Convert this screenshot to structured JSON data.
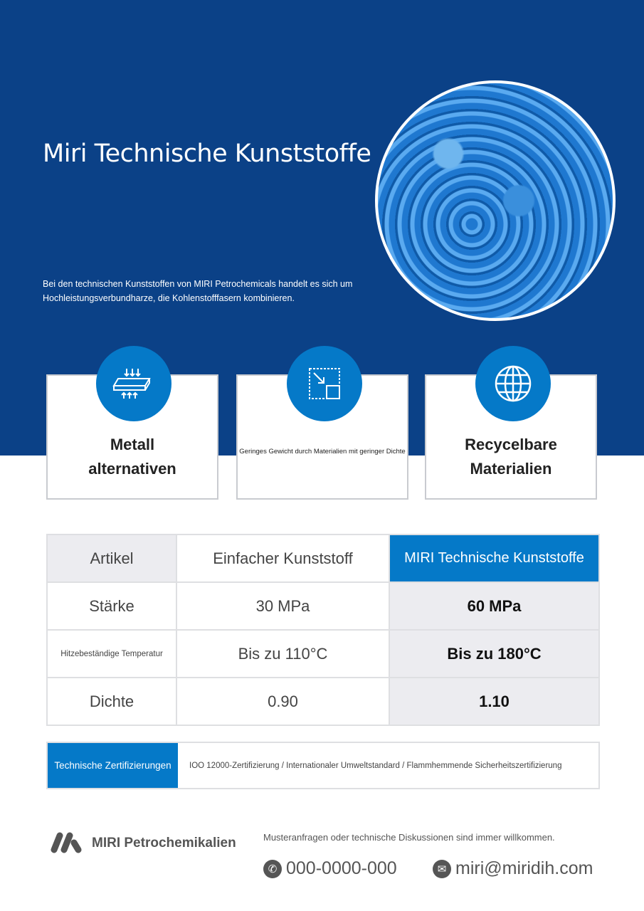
{
  "header": {
    "title": "Miri Technische Kunststoffe",
    "description": "Bei den technischen Kunststoffen von MIRI Petrochemicals handelt es sich um Hochleistungsverbundharze, die Kohlenstofffasern kombinieren."
  },
  "features": [
    {
      "icon": "pressure-plate-icon",
      "label": "Metall alternativen"
    },
    {
      "icon": "resize-icon",
      "label": "Geringes Gewicht durch Materialien mit geringer Dichte"
    },
    {
      "icon": "globe-icon",
      "label": "Recycelbare Materialien"
    }
  ],
  "table": {
    "headers": [
      "Artikel",
      "Einfacher Kunststoff",
      "MIRI Technische Kunststoffe"
    ],
    "rows": [
      [
        "Stärke",
        "30 MPa",
        "60 MPa"
      ],
      [
        "Hitzebeständige Temperatur",
        "Bis zu 110°C",
        "Bis zu 180°C"
      ],
      [
        "Dichte",
        "0.90",
        "1.10"
      ]
    ]
  },
  "certifications": {
    "label": "Technische Zertifizierungen",
    "value": "IOO 12000-Zertifizierung / Internationaler Umweltstandard / Flammhemmende Sicherheitszertifizierung"
  },
  "footer": {
    "brand": "MIRI Petrochemikalien",
    "note": "Musteranfragen oder technische Diskussionen sind immer willkommen.",
    "phone": "000-0000-000",
    "email": "miri@miridih.com"
  },
  "colors": {
    "navy": "#0b4187",
    "accent": "#0579c8"
  }
}
